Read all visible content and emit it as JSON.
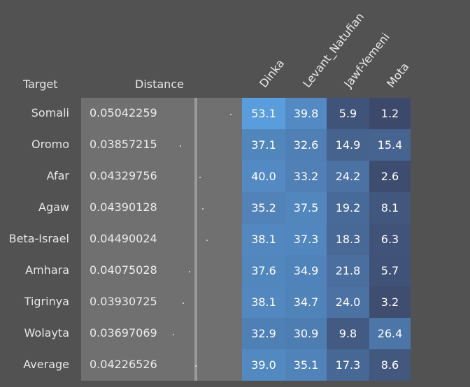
{
  "header": {
    "target_label": "Target",
    "distance_label": "Distance"
  },
  "columns": [
    "Dinka",
    "Levant_Natufian",
    "Jawf-Yemeni",
    "Mota"
  ],
  "rows": [
    {
      "target": "Somali",
      "distance": "0.05042259",
      "values": [
        "53.1",
        "39.8",
        "5.9",
        "1.2"
      ]
    },
    {
      "target": "Oromo",
      "distance": "0.03857215",
      "values": [
        "37.1",
        "32.6",
        "14.9",
        "15.4"
      ]
    },
    {
      "target": "Afar",
      "distance": "0.04329756",
      "values": [
        "40.0",
        "33.2",
        "24.2",
        "2.6"
      ]
    },
    {
      "target": "Agaw",
      "distance": "0.04390128",
      "values": [
        "35.2",
        "37.5",
        "19.2",
        "8.1"
      ]
    },
    {
      "target": "Beta-Israel",
      "distance": "0.04490024",
      "values": [
        "38.1",
        "37.3",
        "18.3",
        "6.3"
      ]
    },
    {
      "target": "Amhara",
      "distance": "0.04075028",
      "values": [
        "37.6",
        "34.9",
        "21.8",
        "5.7"
      ]
    },
    {
      "target": "Tigrinya",
      "distance": "0.03930725",
      "values": [
        "38.1",
        "34.7",
        "24.0",
        "3.2"
      ]
    },
    {
      "target": "Wolayta",
      "distance": "0.03697069",
      "values": [
        "32.9",
        "30.9",
        "9.8",
        "26.4"
      ]
    },
    {
      "target": "Average",
      "distance": "0.04226526",
      "values": [
        "39.0",
        "35.1",
        "17.3",
        "8.6"
      ]
    }
  ],
  "chart_data": {
    "type": "heatmap",
    "x": [
      "Dinka",
      "Levant_Natufian",
      "Jawf-Yemeni",
      "Mota"
    ],
    "y": [
      "Somali",
      "Oromo",
      "Afar",
      "Agaw",
      "Beta-Israel",
      "Amhara",
      "Tigrinya",
      "Wolayta",
      "Average"
    ],
    "values": [
      [
        53.1,
        39.8,
        5.9,
        1.2
      ],
      [
        37.1,
        32.6,
        14.9,
        15.4
      ],
      [
        40.0,
        33.2,
        24.2,
        2.6
      ],
      [
        35.2,
        37.5,
        19.2,
        8.1
      ],
      [
        38.1,
        37.3,
        18.3,
        6.3
      ],
      [
        37.6,
        34.9,
        21.8,
        5.7
      ],
      [
        38.1,
        34.7,
        24.0,
        3.2
      ],
      [
        32.9,
        30.9,
        9.8,
        26.4
      ],
      [
        39.0,
        35.1,
        17.3,
        8.6
      ]
    ],
    "distance": [
      0.05042259,
      0.03857215,
      0.04329756,
      0.04390128,
      0.04490024,
      0.04075028,
      0.03930725,
      0.03697069,
      0.04226526
    ],
    "colors": {
      "background": "#525252",
      "distance_panel": "#707070",
      "low": "#3c4566",
      "high": "#5aa0e0"
    }
  }
}
